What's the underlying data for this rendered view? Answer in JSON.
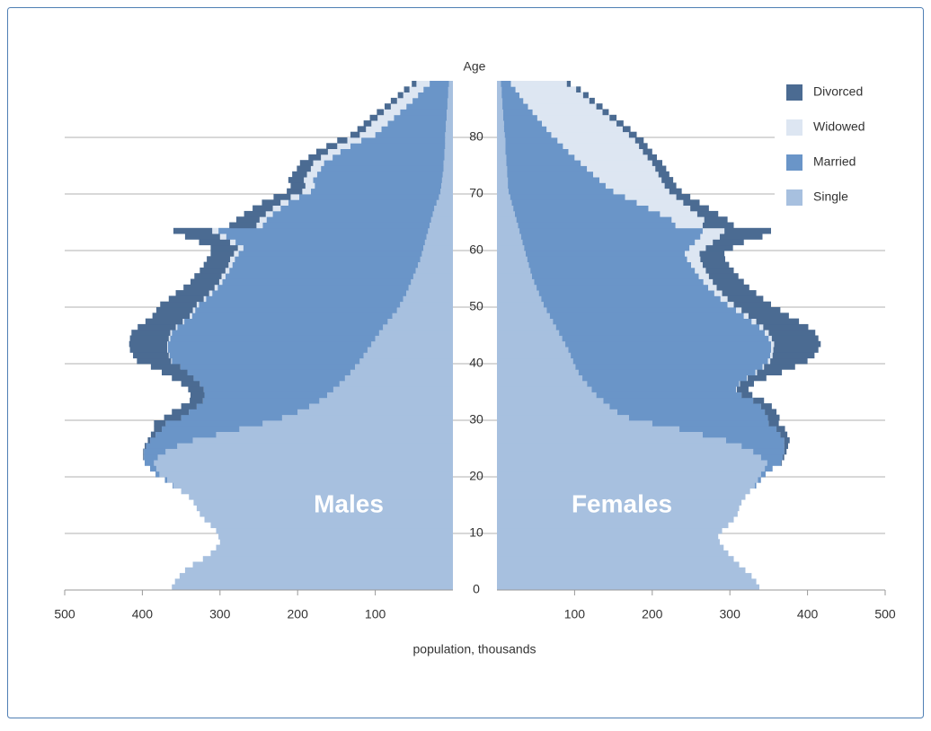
{
  "chart_data": {
    "type": "pyramid",
    "y_label": "Age",
    "x_label": "population, thousands",
    "annotations": [
      "Males",
      "Females"
    ],
    "ages": [
      0,
      1,
      2,
      3,
      4,
      5,
      6,
      7,
      8,
      9,
      10,
      11,
      12,
      13,
      14,
      15,
      16,
      17,
      18,
      19,
      20,
      21,
      22,
      23,
      24,
      25,
      26,
      27,
      28,
      29,
      30,
      31,
      32,
      33,
      34,
      35,
      36,
      37,
      38,
      39,
      40,
      41,
      42,
      43,
      44,
      45,
      46,
      47,
      48,
      49,
      50,
      51,
      52,
      53,
      54,
      55,
      56,
      57,
      58,
      59,
      60,
      61,
      62,
      63,
      64,
      65,
      66,
      67,
      68,
      69,
      70,
      71,
      72,
      73,
      74,
      75,
      76,
      77,
      78,
      79,
      80,
      81,
      82,
      83,
      84,
      85,
      86,
      87,
      88,
      89
    ],
    "xlim": [
      0,
      500
    ],
    "xticks": [
      100,
      200,
      300,
      400,
      500
    ],
    "ylim": [
      0,
      90
    ],
    "yticks": [
      0,
      10,
      20,
      30,
      40,
      50,
      60,
      70,
      80
    ],
    "grid": true,
    "legend": "top-right",
    "series": [
      {
        "name": "Single",
        "color": "#a7c0df",
        "male": [
          362,
          358,
          352,
          345,
          335,
          322,
          312,
          305,
          300,
          302,
          305,
          312,
          320,
          326,
          330,
          334,
          340,
          350,
          360,
          368,
          378,
          382,
          385,
          380,
          370,
          355,
          335,
          305,
          275,
          245,
          220,
          200,
          185,
          172,
          162,
          154,
          146,
          139,
          132,
          126,
          120,
          115,
          110,
          105,
          100,
          95,
          90,
          84,
          78,
          72,
          68,
          64,
          60,
          57,
          54,
          51,
          48,
          45,
          42,
          40,
          38,
          36,
          34,
          32,
          30,
          28,
          26,
          24,
          21,
          18,
          16,
          15,
          14,
          13,
          12,
          12,
          11,
          11,
          10,
          10,
          10,
          9,
          9,
          8,
          8,
          7,
          7,
          6,
          6,
          5
        ],
        "female": [
          338,
          334,
          328,
          320,
          312,
          305,
          298,
          292,
          287,
          285,
          290,
          298,
          305,
          310,
          312,
          315,
          320,
          326,
          332,
          336,
          340,
          345,
          348,
          340,
          330,
          315,
          295,
          265,
          235,
          200,
          170,
          155,
          145,
          137,
          128,
          122,
          116,
          110,
          105,
          101,
          98,
          95,
          92,
          88,
          84,
          80,
          76,
          72,
          68,
          64,
          60,
          57,
          54,
          51,
          48,
          45,
          43,
          41,
          39,
          37,
          35,
          33,
          31,
          29,
          27,
          25,
          23,
          21,
          19,
          17,
          15,
          14,
          14,
          13,
          13,
          12,
          12,
          11,
          11,
          11,
          10,
          9,
          9,
          8,
          8,
          7,
          7,
          6,
          6,
          5
        ]
      },
      {
        "name": "Married",
        "color": "#6a95c8",
        "male": [
          0,
          0,
          0,
          0,
          0,
          0,
          0,
          0,
          0,
          0,
          0,
          0,
          0,
          0,
          0,
          0,
          0,
          0,
          1,
          3,
          5,
          8,
          12,
          18,
          28,
          40,
          55,
          78,
          100,
          125,
          130,
          140,
          145,
          150,
          158,
          167,
          180,
          195,
          210,
          225,
          242,
          250,
          257,
          262,
          264,
          267,
          265,
          262,
          258,
          260,
          259,
          254,
          250,
          246,
          243,
          242,
          240,
          239,
          239,
          236,
          232,
          244,
          258,
          270,
          215,
          212,
          206,
          198,
          191,
          180,
          167,
          163,
          166,
          162,
          158,
          154,
          144,
          134,
          122,
          108,
          90,
          83,
          75,
          68,
          60,
          53,
          45,
          39,
          32,
          25
        ],
        "female": [
          0,
          0,
          0,
          0,
          0,
          0,
          0,
          0,
          0,
          0,
          0,
          0,
          0,
          0,
          0,
          0,
          0,
          0,
          2,
          4,
          6,
          10,
          18,
          28,
          40,
          55,
          75,
          100,
          125,
          150,
          179,
          190,
          195,
          193,
          187,
          186,
          196,
          212,
          228,
          241,
          251,
          257,
          261,
          265,
          266,
          265,
          262,
          256,
          250,
          244,
          237,
          231,
          226,
          221,
          218,
          215,
          212,
          209,
          206,
          205,
          213,
          222,
          231,
          236,
          203,
          200,
          187,
          174,
          161,
          148,
          135,
          126,
          118,
          111,
          103,
          96,
          88,
          81,
          74,
          67,
          60,
          55,
          49,
          44,
          38,
          33,
          27,
          23,
          18,
          13
        ]
      },
      {
        "name": "Widowed",
        "color": "#dde6f2",
        "male": [
          0,
          0,
          0,
          0,
          0,
          0,
          0,
          0,
          0,
          0,
          0,
          0,
          0,
          0,
          0,
          0,
          0,
          0,
          0,
          0,
          0,
          0,
          0,
          0,
          0,
          0,
          0,
          0,
          0,
          0,
          0,
          0,
          0,
          0,
          0,
          0,
          0,
          0,
          0,
          0,
          1,
          1,
          1,
          1,
          2,
          2,
          2,
          2,
          3,
          3,
          3,
          3,
          4,
          4,
          4,
          5,
          5,
          5,
          6,
          6,
          7,
          7,
          8,
          8,
          8,
          9,
          9,
          10,
          10,
          11,
          11,
          12,
          12,
          13,
          13,
          14,
          15,
          16,
          17,
          18,
          20,
          20,
          21,
          21,
          21,
          20,
          20,
          19,
          18,
          17
        ],
        "female": [
          0,
          0,
          0,
          0,
          0,
          0,
          0,
          0,
          0,
          0,
          0,
          0,
          0,
          0,
          0,
          0,
          0,
          0,
          0,
          0,
          0,
          0,
          0,
          0,
          0,
          0,
          0,
          0,
          0,
          0,
          0,
          0,
          0,
          0,
          0,
          1,
          1,
          1,
          2,
          2,
          3,
          3,
          3,
          4,
          4,
          5,
          5,
          6,
          6,
          7,
          8,
          9,
          10,
          11,
          12,
          13,
          14,
          15,
          17,
          19,
          21,
          23,
          25,
          28,
          35,
          42,
          48,
          54,
          60,
          66,
          72,
          76,
          80,
          84,
          88,
          92,
          94,
          96,
          98,
          100,
          100,
          98,
          96,
          93,
          90,
          88,
          85,
          82,
          78,
          72
        ]
      },
      {
        "name": "Divorced",
        "color": "#4b6b92",
        "male": [
          0,
          0,
          0,
          0,
          0,
          0,
          0,
          0,
          0,
          0,
          0,
          0,
          0,
          0,
          0,
          0,
          0,
          0,
          0,
          0,
          0,
          0,
          0,
          1,
          1,
          2,
          3,
          6,
          10,
          15,
          22,
          22,
          20,
          17,
          18,
          20,
          24,
          28,
          33,
          38,
          44,
          46,
          48,
          49,
          50,
          50,
          49,
          48,
          48,
          47,
          47,
          45,
          43,
          40,
          37,
          35,
          33,
          32,
          30,
          30,
          35,
          40,
          45,
          50,
          35,
          30,
          28,
          26,
          24,
          22,
          20,
          19,
          20,
          19,
          18,
          17,
          16,
          15,
          14,
          13,
          12,
          11,
          10,
          10,
          9,
          8,
          8,
          7,
          7,
          6
        ],
        "female": [
          0,
          0,
          0,
          0,
          0,
          0,
          0,
          0,
          0,
          0,
          0,
          0,
          0,
          0,
          0,
          0,
          0,
          0,
          0,
          0,
          0,
          0,
          1,
          2,
          3,
          5,
          7,
          9,
          11,
          13,
          15,
          15,
          14,
          14,
          14,
          15,
          18,
          24,
          32,
          40,
          48,
          54,
          58,
          60,
          60,
          60,
          58,
          55,
          52,
          50,
          48,
          46,
          44,
          42,
          40,
          38,
          36,
          34,
          32,
          32,
          35,
          40,
          55,
          60,
          40,
          30,
          27,
          24,
          21,
          18,
          16,
          15,
          15,
          14,
          14,
          13,
          12,
          12,
          11,
          11,
          10,
          10,
          9,
          9,
          8,
          8,
          7,
          7,
          6,
          5
        ]
      }
    ]
  }
}
